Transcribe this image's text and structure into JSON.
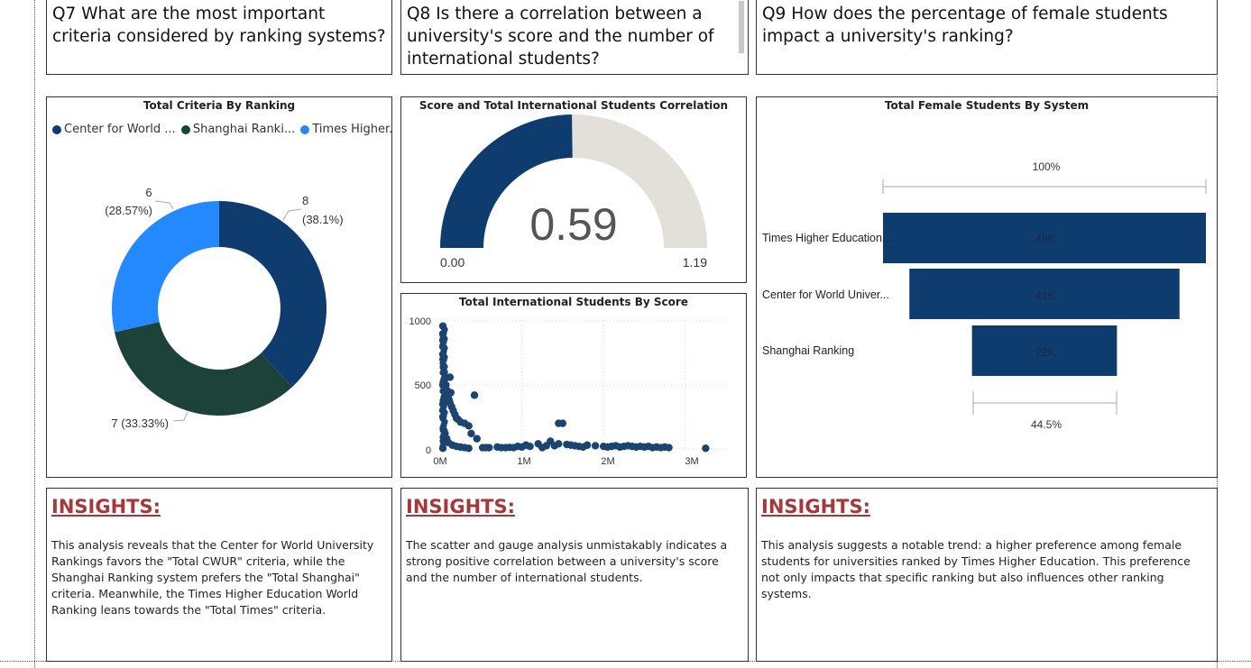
{
  "questions": {
    "q7": "Q7 What are the most important criteria considered by ranking systems?",
    "q8": "Q8 Is there a correlation between a university's score and the number of international students?",
    "q9": "Q9 How does the percentage of female students impact a university's ranking?"
  },
  "donut": {
    "title": "Total Criteria By Ranking",
    "legend": [
      {
        "label": "Center for World ...",
        "color": "#0f3c6e"
      },
      {
        "label": "Shanghai Ranki...",
        "color": "#1c423a"
      },
      {
        "label": "Times Higher...",
        "color": "#2489ff"
      }
    ],
    "labels": {
      "cwur_value": "8",
      "cwur_pct": "(38.1%)",
      "shanghai": "7 (33.33%)",
      "times_value": "6",
      "times_pct": "(28.57%)"
    }
  },
  "gauge": {
    "title": "Score and Total International Students Correlation",
    "value_label": "0.59",
    "min_label": "0.00",
    "max_label": "1.19",
    "fill_color": "#0f3c6e",
    "track_color": "#e3e0da"
  },
  "scatter": {
    "title": "Total International Students By Score",
    "y_ticks": [
      "1000",
      "500",
      "0"
    ],
    "x_ticks": [
      "0M",
      "1M",
      "2M",
      "3M"
    ],
    "color": "#1b4570"
  },
  "funnel": {
    "title": "Total Female Students By System",
    "top_label": "100%",
    "bottom_label": "44.5%",
    "rows": [
      {
        "label": "Times Higher Education...",
        "value_label": "49K"
      },
      {
        "label": "Center for World Univer...",
        "value_label": "41K"
      },
      {
        "label": "Shanghai Ranking",
        "value_label": "22K"
      }
    ],
    "bar_color": "#0f3c6e"
  },
  "insights": {
    "heading": "INSIGHTS:",
    "q7": "This analysis reveals that the Center for World University Rankings favors the \"Total CWUR\" criteria, while the Shanghai Ranking system prefers the \"Total Shanghai\" criteria. Meanwhile, the Times Higher Education World Ranking leans towards the \"Total Times\" criteria.",
    "q8": "The scatter and gauge analysis unmistakably indicates a strong positive correlation between a university's score and the number of international students.",
    "q9": "This analysis suggests a notable trend: a higher preference among female students for universities ranked by Times Higher Education. This preference not only impacts that specific ranking but also influences other ranking systems."
  },
  "chart_data": [
    {
      "type": "pie",
      "title": "Total Criteria By Ranking",
      "categories": [
        "Center for World ...",
        "Shanghai Ranki...",
        "Times Higher..."
      ],
      "values": [
        8,
        7,
        6
      ],
      "percent": [
        38.1,
        33.33,
        28.57
      ]
    },
    {
      "type": "gauge",
      "title": "Score and Total International Students Correlation",
      "value": 0.59,
      "min": 0.0,
      "max": 1.19
    },
    {
      "type": "scatter",
      "title": "Total International Students By Score",
      "xlim": [
        0,
        3300000
      ],
      "ylim": [
        0,
        1000
      ],
      "x": [
        10000,
        15000,
        20000,
        25000,
        30000,
        35000,
        40000,
        50000,
        60000,
        70000,
        80000,
        90000,
        100000,
        110000,
        120000,
        140000,
        160000,
        180000,
        200000,
        220000,
        250000,
        300000,
        350000,
        380000,
        420000,
        450000,
        520000,
        560000,
        600000,
        700000,
        750000,
        800000,
        850000,
        900000,
        950000,
        1000000,
        1050000,
        1100000,
        1200000,
        1250000,
        1300000,
        1400000,
        1450000,
        1500000,
        1550000,
        1600000,
        1650000,
        1700000,
        1750000,
        1800000,
        1900000,
        2000000,
        2050000,
        2100000,
        2150000,
        2200000,
        2250000,
        2300000,
        2350000,
        2400000,
        2450000,
        2500000,
        2550000,
        2600000,
        2650000,
        2700000,
        2750000,
        2800000,
        3250000,
        20000,
        40000,
        60000,
        80000,
        100000,
        150000,
        200000,
        250000,
        300000,
        350000,
        10000,
        20000,
        30000,
        40000,
        50000,
        60000,
        30000,
        40000,
        50000,
        60000,
        70000,
        1350000,
        1450000,
        120000,
        130000
      ],
      "y": [
        960,
        900,
        850,
        800,
        740,
        700,
        640,
        600,
        550,
        500,
        460,
        420,
        400,
        380,
        360,
        330,
        300,
        270,
        240,
        230,
        210,
        200,
        180,
        120,
        420,
        80,
        10,
        10,
        10,
        15,
        10,
        10,
        12,
        10,
        20,
        15,
        30,
        20,
        40,
        10,
        25,
        25,
        200,
        200,
        35,
        30,
        25,
        20,
        15,
        30,
        25,
        20,
        15,
        20,
        25,
        15,
        20,
        25,
        20,
        15,
        20,
        15,
        20,
        10,
        15,
        10,
        15,
        10,
        5,
        5,
        60,
        120,
        80,
        50,
        30,
        20,
        15,
        10,
        5,
        300,
        350,
        250,
        150,
        100,
        70,
        500,
        520,
        450,
        420,
        380,
        60,
        40,
        560,
        440
      ],
      "xlabel": "",
      "ylabel": ""
    },
    {
      "type": "funnel",
      "title": "Total Female Students By System",
      "categories": [
        "Times Higher Education...",
        "Center for World Univer...",
        "Shanghai Ranking"
      ],
      "values": [
        49000,
        41000,
        22000
      ],
      "top_percent": 100,
      "bottom_percent": 44.5
    }
  ]
}
